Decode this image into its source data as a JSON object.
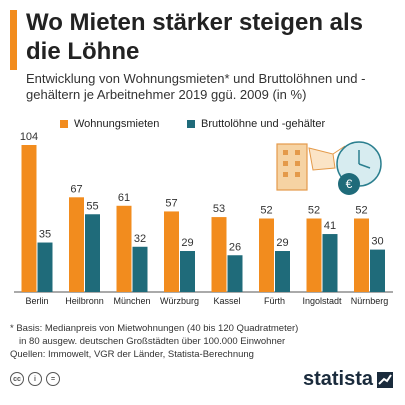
{
  "header": {
    "title": "Wo Mieten stärker steigen als die Löhne",
    "subtitle": "Entwicklung von Wohnungsmieten* und Bruttolöhnen und -gehältern je Arbeitnehmer 2019 ggü. 2009 (in %)",
    "accent_color": "#f28c1e"
  },
  "legend": [
    {
      "label": "Wohnungsmieten",
      "color": "#f28c1e"
    },
    {
      "label": "Bruttolöhne und -gehälter",
      "color": "#1f6b7a"
    }
  ],
  "chart_data": {
    "type": "bar",
    "categories": [
      "Berlin",
      "Heilbronn",
      "München",
      "Würzburg",
      "Kassel",
      "Fürth",
      "Ingolstadt",
      "Nürnberg"
    ],
    "series": [
      {
        "name": "Wohnungsmieten",
        "color": "#f28c1e",
        "values": [
          104,
          67,
          61,
          57,
          53,
          52,
          52,
          52
        ]
      },
      {
        "name": "Bruttolöhne und -gehälter",
        "color": "#1f6b7a",
        "values": [
          35,
          55,
          32,
          29,
          26,
          29,
          41,
          30
        ]
      }
    ],
    "title": "Wo Mieten stärker steigen als die Löhne",
    "xlabel": "",
    "ylabel": "",
    "ylim": [
      0,
      104
    ],
    "grid": false,
    "legend_position": "top"
  },
  "footnote": {
    "line1": "* Basis: Medianpreis von Mietwohnungen (40 bis 120 Quadratmeter)",
    "line2": "in 80 ausgew. deutschen Großstädten über 100.000 Einwohner",
    "sources": "Quellen: Immowelt, VGR der Länder, Statista-Berechnung"
  },
  "footer": {
    "brand": "statista",
    "license_icons": [
      "cc",
      "i",
      "="
    ]
  }
}
